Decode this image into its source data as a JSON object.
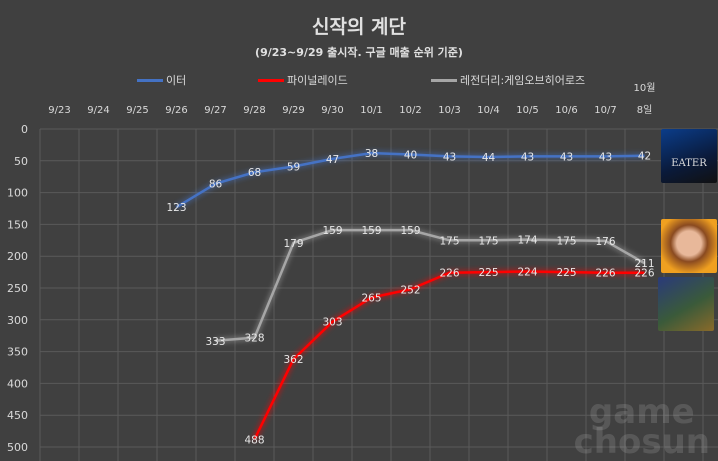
{
  "chart_data": {
    "type": "line",
    "title": "신작의 계단",
    "subtitle": "(9/23~9/29 출시작. 구글 매출 순위 기준)",
    "categories": [
      "9/23",
      "9/24",
      "9/25",
      "9/26",
      "9/27",
      "9/28",
      "9/29",
      "9/30",
      "10/1",
      "10/2",
      "10/3",
      "10/4",
      "10/5",
      "10/6",
      "10/7",
      "10월 8일"
    ],
    "ylim": [
      0,
      500
    ],
    "y_reversed": true,
    "yticks": [
      0,
      50,
      100,
      150,
      200,
      250,
      300,
      350,
      400,
      450,
      500
    ],
    "grid": true,
    "legend_position": "top",
    "series": [
      {
        "name": "이터",
        "color": "#4472c4",
        "values": [
          null,
          null,
          null,
          123,
          86,
          68,
          59,
          47,
          38,
          40,
          43,
          44,
          43,
          43,
          43,
          42
        ]
      },
      {
        "name": "파이널레이드",
        "color": "#ff0000",
        "values": [
          null,
          null,
          null,
          null,
          null,
          488,
          362,
          303,
          265,
          252,
          226,
          225,
          224,
          225,
          226,
          226
        ]
      },
      {
        "name": "레전더리:게임오브히어로즈",
        "color": "#a6a6a6",
        "values": [
          null,
          null,
          null,
          null,
          333,
          328,
          179,
          159,
          159,
          159,
          175,
          175,
          174,
          175,
          176,
          211
        ]
      }
    ]
  },
  "watermark": [
    "game",
    "chosun"
  ]
}
